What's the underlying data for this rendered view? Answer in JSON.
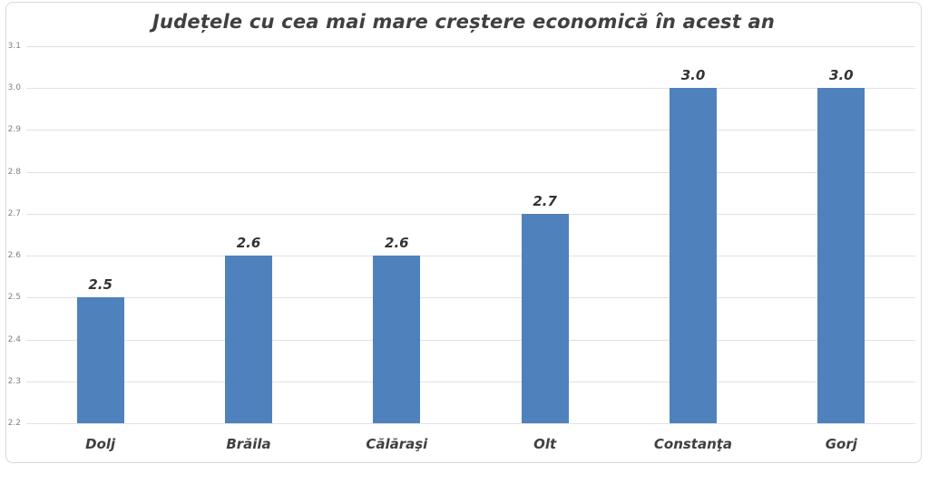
{
  "chart_data": {
    "type": "bar",
    "title": "Județele cu cea mai mare creștere economică în acest an",
    "categories": [
      "Dolj",
      "Brăila",
      "Călăraşi",
      "Olt",
      "Constanţa",
      "Gorj"
    ],
    "values": [
      2.5,
      2.6,
      2.6,
      2.7,
      3.0,
      3.0
    ],
    "value_labels": [
      "2.5",
      "2.6",
      "2.6",
      "2.7",
      "3.0",
      "3.0"
    ],
    "xlabel": "",
    "ylabel": "",
    "ylim": [
      2.2,
      3.1
    ],
    "ytick_step": 0.1,
    "ytick_labels": [
      "3.1",
      "3.0",
      "2.9",
      "2.8",
      "2.7",
      "2.6",
      "2.5",
      "2.4",
      "2.3",
      "2.2"
    ],
    "grid": true,
    "legend_position": "none",
    "colors": {
      "bar": "#4f81bd",
      "title": "#404040",
      "category_label": "#404040",
      "value_label": "#333333",
      "tick_label": "#808080",
      "gridline": "#e2e2e2",
      "frame_border": "#d9d9d9",
      "background": "#ffffff"
    }
  }
}
